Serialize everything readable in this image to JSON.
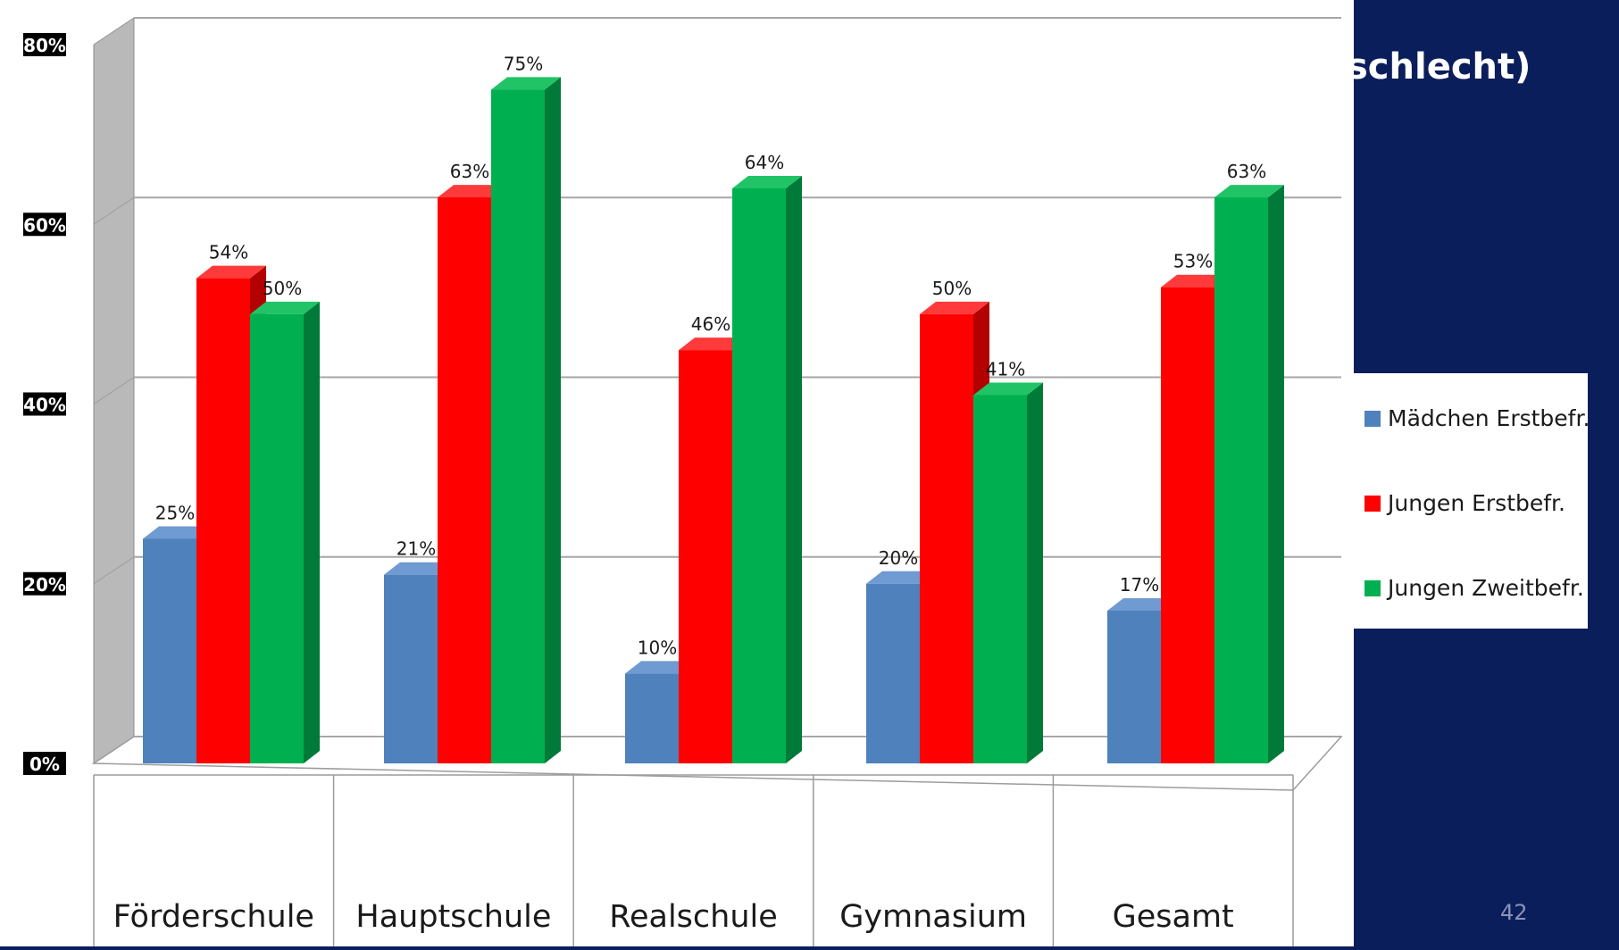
{
  "slide": {
    "title_fragment": "schlecht)",
    "page_number": "42",
    "footer_text": ""
  },
  "colors": {
    "slide_bg": "#0b1e5c",
    "chart_bg": "#ffffff",
    "back_wall": "#ffffff",
    "side_wall": "#b9b9b9",
    "gridline": "#a6a6a6"
  },
  "chart_data": {
    "type": "bar",
    "title": "",
    "xlabel": "",
    "ylabel": "",
    "ylim": [
      0,
      80
    ],
    "y_ticks": [
      "0%",
      "20%",
      "40%",
      "60%",
      "80%"
    ],
    "grid": true,
    "legend_position": "right",
    "categories": [
      "Förderschule",
      "Hauptschule",
      "Realschule",
      "Gymnasium",
      "Gesamt"
    ],
    "series": [
      {
        "name": "Mädchen Erstbefr.",
        "values": [
          25,
          21,
          10,
          20,
          17
        ],
        "labels": [
          "25%",
          "21%",
          "10%",
          "20%",
          "17%"
        ],
        "color": "#4f81bd",
        "side_color": "#36608f",
        "top_color": "#6f9ad2"
      },
      {
        "name": "Jungen Erstbefr.",
        "values": [
          54,
          63,
          46,
          50,
          53
        ],
        "labels": [
          "54%",
          "63%",
          "46%",
          "50%",
          "53%"
        ],
        "color": "#ff0000",
        "side_color": "#b30000",
        "top_color": "#ff3a3a"
      },
      {
        "name": "Jungen Zweitbefr.",
        "values": [
          50,
          75,
          64,
          41,
          63
        ],
        "labels": [
          "50%",
          "75%",
          "64%",
          "41%",
          "63%"
        ],
        "color": "#00b050",
        "side_color": "#007a38",
        "top_color": "#20c466"
      }
    ]
  }
}
